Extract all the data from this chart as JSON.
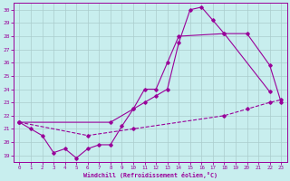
{
  "xlabel": "Windchill (Refroidissement éolien,°C)",
  "bg_color": "#c8eeee",
  "line_color": "#990099",
  "grid_color": "#aacccc",
  "xlim": [
    -0.5,
    23.5
  ],
  "ylim": [
    18.5,
    30.5
  ],
  "yticks": [
    19,
    20,
    21,
    22,
    23,
    24,
    25,
    26,
    27,
    28,
    29,
    30
  ],
  "xticks": [
    0,
    1,
    2,
    3,
    4,
    5,
    6,
    7,
    8,
    9,
    10,
    11,
    12,
    13,
    14,
    15,
    16,
    17,
    18,
    19,
    20,
    21,
    22,
    23
  ],
  "line1_x": [
    0,
    1,
    2,
    3,
    4,
    5,
    6,
    7,
    8,
    9,
    10,
    11,
    12,
    13,
    14,
    15,
    16,
    17,
    18,
    22
  ],
  "line1_y": [
    21.5,
    21.0,
    20.5,
    19.2,
    19.5,
    18.8,
    19.5,
    19.8,
    19.8,
    21.2,
    22.5,
    23.0,
    23.5,
    24.0,
    27.5,
    30.0,
    30.2,
    29.2,
    28.2,
    23.8
  ],
  "line2_x": [
    0,
    8,
    10,
    11,
    12,
    13,
    14,
    18,
    20,
    22,
    23
  ],
  "line2_y": [
    21.5,
    21.5,
    22.5,
    24.0,
    24.0,
    26.0,
    28.0,
    28.2,
    28.2,
    25.8,
    23.0
  ],
  "line3_x": [
    0,
    6,
    10,
    18,
    20,
    22,
    23
  ],
  "line3_y": [
    21.5,
    20.5,
    21.0,
    22.0,
    22.5,
    23.0,
    23.2
  ]
}
